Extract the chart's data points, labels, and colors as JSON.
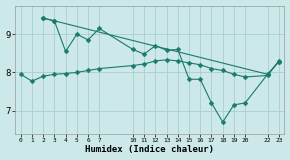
{
  "background_color": "#cce8e8",
  "grid_color": "#a8cece",
  "line_color": "#1a7a6e",
  "xlabel": "Humidex (Indice chaleur)",
  "xlim": [
    -0.5,
    23.5
  ],
  "ylim": [
    6.4,
    9.75
  ],
  "yticks": [
    7,
    8,
    9
  ],
  "xticks": [
    0,
    1,
    2,
    3,
    4,
    5,
    6,
    7,
    10,
    11,
    12,
    13,
    14,
    15,
    16,
    17,
    18,
    19,
    20,
    22,
    23
  ],
  "series1_x": [
    0,
    1,
    2,
    3,
    4,
    5,
    6,
    7,
    10,
    11,
    12,
    13,
    14,
    15,
    16,
    17,
    18,
    19,
    20,
    22,
    23
  ],
  "series1_y": [
    7.95,
    7.77,
    7.9,
    7.95,
    7.97,
    8.0,
    8.05,
    8.1,
    8.18,
    8.22,
    8.3,
    8.33,
    8.3,
    8.25,
    8.2,
    8.1,
    8.05,
    7.95,
    7.88,
    7.92,
    8.3
  ],
  "series2_x": [
    2,
    3,
    4,
    5,
    6,
    7,
    10,
    11,
    12,
    13,
    14,
    15,
    16,
    17,
    18,
    19,
    20,
    22,
    23
  ],
  "series2_y": [
    9.42,
    9.35,
    8.55,
    9.0,
    8.85,
    9.15,
    8.6,
    8.48,
    8.7,
    8.58,
    8.6,
    7.82,
    7.82,
    7.2,
    6.7,
    7.15,
    7.2,
    7.95,
    8.28
  ],
  "series3_x": [
    2,
    3,
    22,
    23
  ],
  "series3_y": [
    9.42,
    9.35,
    7.95,
    8.28
  ]
}
